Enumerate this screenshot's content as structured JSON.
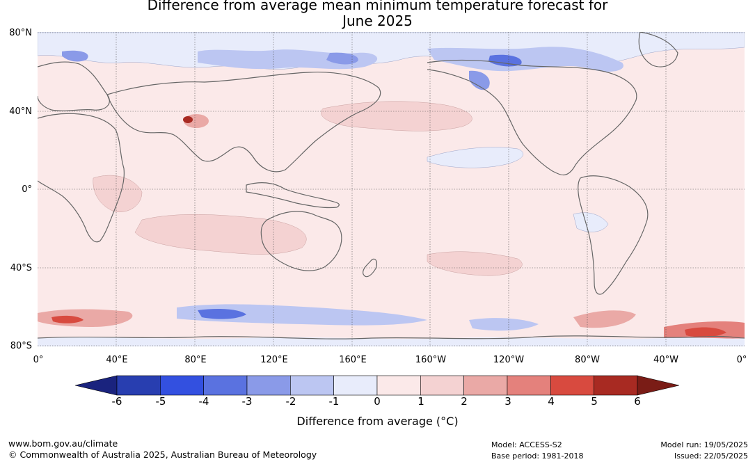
{
  "title_line1": "Difference from average mean minimum temperature forecast for",
  "title_line2": "June 2025",
  "lat_labels": [
    "80°N",
    "40°N",
    "0°",
    "40°S",
    "80°S"
  ],
  "lon_labels": [
    "0°",
    "40°E",
    "80°E",
    "120°E",
    "160°E",
    "160°W",
    "120°W",
    "80°W",
    "40°W",
    "0°"
  ],
  "colorbar": {
    "ticks": [
      "-6",
      "-5",
      "-4",
      "-3",
      "-2",
      "-1",
      "0",
      "1",
      "2",
      "3",
      "4",
      "5",
      "6"
    ],
    "colors": [
      "#1a237e",
      "#283eb0",
      "#3350e0",
      "#5a72e0",
      "#8a9ae8",
      "#bcc6f2",
      "#e8ecfb",
      "#fbe9e9",
      "#f4d2d2",
      "#eaa9a6",
      "#e4817c",
      "#d84a3f",
      "#a82a22",
      "#7a1c16"
    ],
    "label": "Difference from average (°C)"
  },
  "footer": {
    "url": "www.bom.gov.au/climate",
    "copyright": "© Commonwealth of Australia 2025, Australian Bureau of Meteorology",
    "model": "Model: ACCESS-S2",
    "base_period": "Base period: 1981-2018",
    "model_run": "Model run: 19/05/2025",
    "issued": "Issued: 22/05/2025"
  }
}
